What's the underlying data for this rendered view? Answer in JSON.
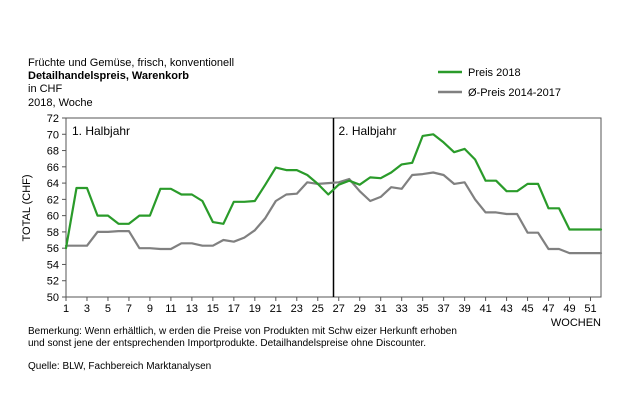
{
  "header": {
    "line1": "Früchte und Gemüse, frisch, konventionell",
    "line2": "Detailhandelspreis, Warenkorb",
    "line3": "in CHF",
    "line4": "2018, Woche"
  },
  "footer": {
    "note1": "Bemerkung: Wenn erhältlich, w erden die Preise von Produkten mit Schw eizer Herkunft erhoben",
    "note2": "und sonst jene der entsprechenden Importprodukte. Detailhandelspreise ohne Discounter.",
    "source": "Quelle: BLW, Fachbereich Marktanalysen"
  },
  "colors": {
    "green": "#2a9b2a",
    "gray": "#808080",
    "axis": "#555555"
  },
  "chart_data": {
    "type": "line",
    "title": "",
    "xlabel": "WOCHEN",
    "ylabel": "TOTAL (CHF)",
    "xlim": [
      1,
      52
    ],
    "ylim": [
      50,
      72
    ],
    "y_ticks": [
      50,
      52,
      54,
      56,
      58,
      60,
      62,
      64,
      66,
      68,
      70,
      72
    ],
    "x_ticks": [
      1,
      3,
      5,
      7,
      9,
      11,
      13,
      15,
      17,
      19,
      21,
      23,
      25,
      27,
      29,
      31,
      33,
      35,
      37,
      39,
      41,
      43,
      45,
      47,
      49,
      51
    ],
    "legend_position": "top-right",
    "divider": {
      "week": 26.5,
      "labels": [
        "1. Halbjahr",
        "2. Halbjahr"
      ]
    },
    "x": [
      1,
      2,
      3,
      4,
      5,
      6,
      7,
      8,
      9,
      10,
      11,
      12,
      13,
      14,
      15,
      16,
      17,
      18,
      19,
      20,
      21,
      22,
      23,
      24,
      25,
      26,
      27,
      28,
      29,
      30,
      31,
      32,
      33,
      34,
      35,
      36,
      37,
      38,
      39,
      40,
      41,
      42,
      43,
      44,
      45,
      46,
      47,
      48,
      49,
      50,
      51,
      52
    ],
    "series": [
      {
        "name": "Preis 2018",
        "color": "#2a9b2a",
        "values": [
          56.0,
          63.4,
          63.4,
          60.0,
          60.0,
          59.0,
          59.0,
          60.0,
          60.0,
          63.3,
          63.3,
          62.6,
          62.6,
          61.8,
          59.2,
          59.0,
          61.7,
          61.7,
          61.8,
          63.8,
          65.9,
          65.6,
          65.6,
          65.0,
          63.9,
          62.6,
          63.8,
          64.3,
          63.8,
          64.7,
          64.6,
          65.3,
          66.3,
          66.5,
          69.8,
          70.0,
          69.0,
          67.8,
          68.2,
          66.9,
          64.3,
          64.3,
          63.0,
          63.0,
          63.9,
          63.9,
          60.9,
          60.9,
          58.3,
          58.3,
          58.3,
          58.3
        ]
      },
      {
        "name": "Ø-Preis 2014-2017",
        "color": "#808080",
        "values": [
          56.3,
          56.3,
          56.3,
          58.0,
          58.0,
          58.1,
          58.1,
          56.0,
          56.0,
          55.9,
          55.9,
          56.6,
          56.6,
          56.3,
          56.3,
          57.0,
          56.8,
          57.3,
          58.2,
          59.7,
          61.8,
          62.6,
          62.7,
          64.1,
          63.9,
          64.0,
          64.1,
          64.5,
          63.0,
          61.8,
          62.3,
          63.5,
          63.3,
          65.0,
          65.1,
          65.3,
          65.0,
          63.9,
          64.1,
          62.0,
          60.4,
          60.4,
          60.2,
          60.2,
          57.9,
          57.9,
          55.9,
          55.9,
          55.4,
          55.4,
          55.4,
          55.4
        ]
      }
    ]
  }
}
